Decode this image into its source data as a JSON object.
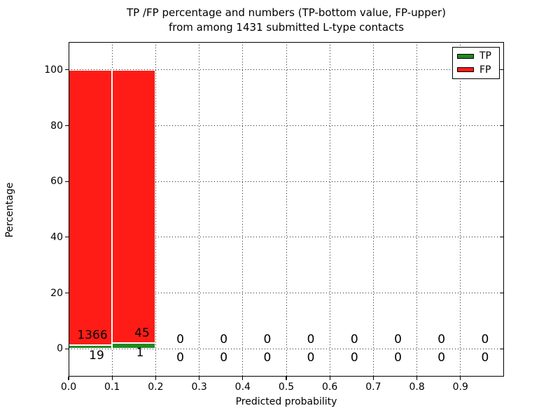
{
  "title": {
    "line1": "TP /FP percentage and numbers (TP-bottom value, FP-upper)",
    "line2": "from among 1431 submitted L-type contacts"
  },
  "chart_data": {
    "type": "bar",
    "stacked": true,
    "title": "TP /FP percentage and numbers (TP-bottom value, FP-upper) from among 1431 submitted L-type contacts",
    "xlabel": "Predicted probability",
    "ylabel": "Percentage",
    "total_submitted": 1431,
    "xlim": [
      0.0,
      1.0
    ],
    "ylim": [
      -10,
      110
    ],
    "xticks": [
      0.0,
      0.1,
      0.2,
      0.3,
      0.4,
      0.5,
      0.6,
      0.7,
      0.8,
      0.9
    ],
    "xtick_labels": [
      "0.0",
      "0.1",
      "0.2",
      "0.3",
      "0.4",
      "0.5",
      "0.6",
      "0.7",
      "0.8",
      "0.9"
    ],
    "yticks": [
      0,
      20,
      40,
      60,
      80,
      100
    ],
    "ytick_labels": [
      "0",
      "20",
      "40",
      "60",
      "80",
      "100"
    ],
    "grid": true,
    "legend": {
      "position": "upper right",
      "entries": [
        {
          "label": "TP",
          "color": "#218a21"
        },
        {
          "label": "FP",
          "color": "#ff1c17"
        }
      ]
    },
    "colors": {
      "tp": "#218a21",
      "fp": "#ff1c17",
      "bar_edge": "#ffffff"
    },
    "bins": [
      {
        "range": "0.0-0.1",
        "tp_count": 19,
        "fp_count": 1366,
        "tp_pct": 1.37,
        "fp_pct": 98.63
      },
      {
        "range": "0.1-0.2",
        "tp_count": 1,
        "fp_count": 45,
        "tp_pct": 2.17,
        "fp_pct": 97.83
      },
      {
        "range": "0.2-0.3",
        "tp_count": 0,
        "fp_count": 0,
        "tp_pct": 0,
        "fp_pct": 0
      },
      {
        "range": "0.3-0.4",
        "tp_count": 0,
        "fp_count": 0,
        "tp_pct": 0,
        "fp_pct": 0
      },
      {
        "range": "0.4-0.5",
        "tp_count": 0,
        "fp_count": 0,
        "tp_pct": 0,
        "fp_pct": 0
      },
      {
        "range": "0.5-0.6",
        "tp_count": 0,
        "fp_count": 0,
        "tp_pct": 0,
        "fp_pct": 0
      },
      {
        "range": "0.6-0.7",
        "tp_count": 0,
        "fp_count": 0,
        "tp_pct": 0,
        "fp_pct": 0
      },
      {
        "range": "0.7-0.8",
        "tp_count": 0,
        "fp_count": 0,
        "tp_pct": 0,
        "fp_pct": 0
      },
      {
        "range": "0.8-0.9",
        "tp_count": 0,
        "fp_count": 0,
        "tp_pct": 0,
        "fp_pct": 0
      },
      {
        "range": "0.9-1.0",
        "tp_count": 0,
        "fp_count": 0,
        "tp_pct": 0,
        "fp_pct": 0
      }
    ]
  }
}
